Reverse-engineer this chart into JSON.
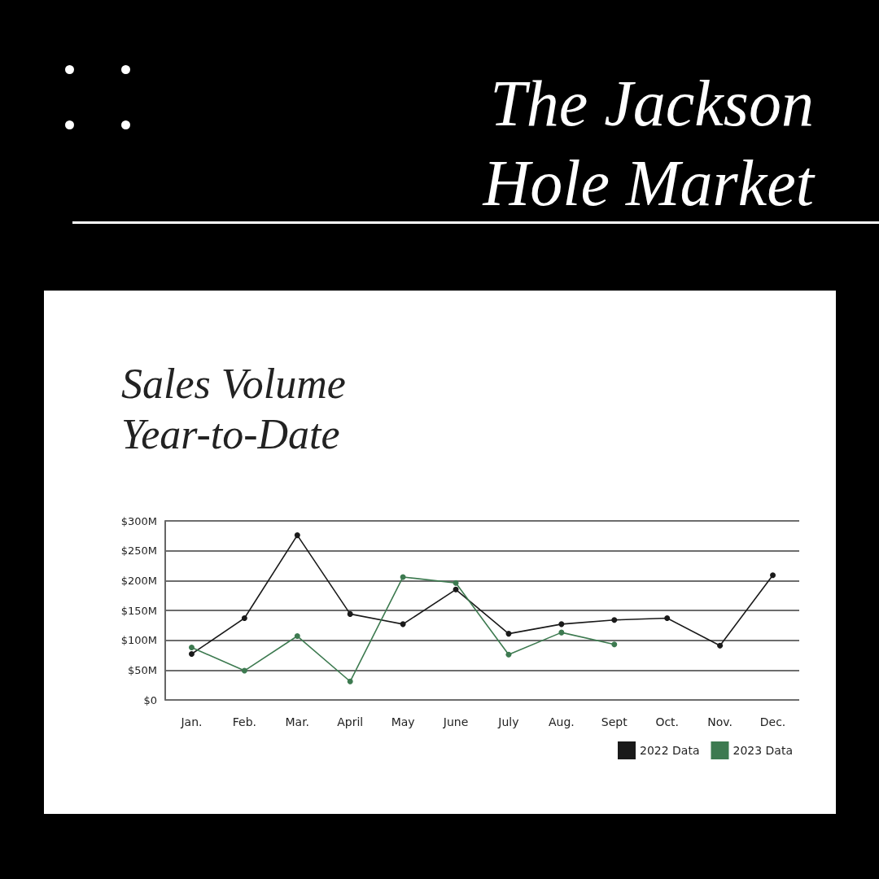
{
  "chart_data": {
    "type": "line",
    "title": "The Jackson Hole Market",
    "subtitle": "Sales Volume Year-to-Date",
    "categories": [
      "Jan.",
      "Feb.",
      "Mar.",
      "April",
      "May",
      "June",
      "July",
      "Aug.",
      "Sept",
      "Oct.",
      "Nov.",
      "Dec."
    ],
    "series": [
      {
        "name": "2022 Data",
        "color": "#1a1a1a",
        "values": [
          77,
          137,
          276,
          144,
          127,
          185,
          111,
          127,
          134,
          137,
          91,
          209
        ]
      },
      {
        "name": "2023 Data",
        "color": "#3d7a50",
        "values": [
          88,
          49,
          107,
          31,
          206,
          196,
          76,
          113,
          93,
          null,
          null,
          null
        ]
      }
    ],
    "ylim": [
      0,
      300
    ],
    "yticks": [
      {
        "value": 0,
        "label": "$0"
      },
      {
        "value": 50,
        "label": "$50M"
      },
      {
        "value": 100,
        "label": "$100M"
      },
      {
        "value": 150,
        "label": "$150M"
      },
      {
        "value": 200,
        "label": "$200M"
      },
      {
        "value": 250,
        "label": "$250M"
      },
      {
        "value": 300,
        "label": "$300M"
      }
    ],
    "grid": "y",
    "legend": "bottom right",
    "marker": "circle",
    "line_style": "solid"
  }
}
